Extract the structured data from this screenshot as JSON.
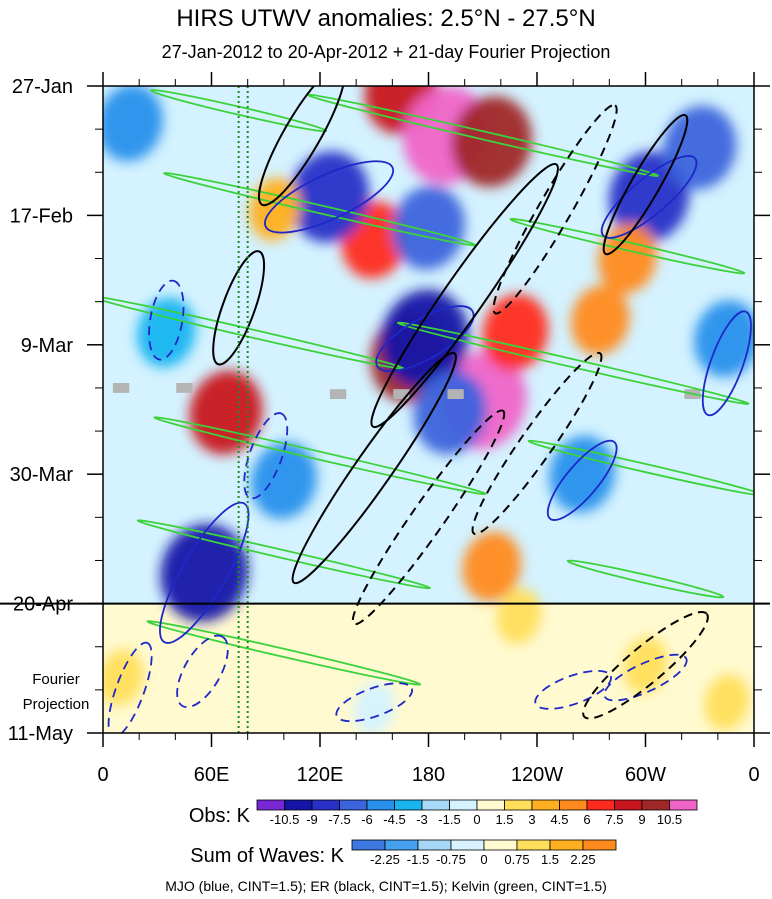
{
  "chart_data": {
    "type": "heatmap",
    "title": "HIRS UTWV anomalies: 2.5°N - 27.5°N",
    "subtitle": "27-Jan-2012 to 20-Apr-2012 + 21-day Fourier Projection",
    "x_ticks": [
      "0",
      "60E",
      "120E",
      "180",
      "120W",
      "60W",
      "0"
    ],
    "x_tick_values": [
      0,
      60,
      120,
      180,
      240,
      300,
      360
    ],
    "xlim": [
      0,
      360
    ],
    "y_ticks": [
      "27-Jan",
      "17-Feb",
      "9-Mar",
      "30-Mar",
      "20-Apr",
      "11-May"
    ],
    "y_tick_days": [
      0,
      21,
      42,
      63,
      84,
      105
    ],
    "ylim_days": [
      0,
      105
    ],
    "observation_end_day": 84,
    "forecast_label": [
      "Fourier",
      "Projection"
    ],
    "reference_lines_longitude": [
      75,
      80
    ],
    "obs_colorbar": {
      "label": "Obs: K",
      "levels": [
        "-10.5",
        "-9",
        "-7.5",
        "-6",
        "-4.5",
        "-3",
        "-1.5",
        "0",
        "1.5",
        "3",
        "4.5",
        "6",
        "7.5",
        "9",
        "10.5"
      ],
      "colors": [
        "#7a28d6",
        "#1414a8",
        "#2830c8",
        "#3c64dc",
        "#2890ec",
        "#18b4f0",
        "#a8daf8",
        "#d4f2ff",
        "#fffad0",
        "#ffde5a",
        "#ffb020",
        "#ff8a1e",
        "#ff2a1e",
        "#c8141e",
        "#a02828",
        "#f064c8"
      ]
    },
    "waves_colorbar": {
      "label": "Sum of Waves: K",
      "levels": [
        "-2.25",
        "-1.5",
        "-0.75",
        "0",
        "0.75",
        "1.5",
        "2.25"
      ],
      "colors": [
        "#3c78e0",
        "#46a0f0",
        "#a8d8f8",
        "#d8f2ff",
        "#fffad0",
        "#ffde5a",
        "#ffb020",
        "#ff8a1e"
      ]
    },
    "contour_legend": "MJO (blue, CINT=1.5); ER (black, CINT=1.5); Kelvin (green, CINT=1.5)",
    "series": [
      {
        "name": "MJO",
        "color": "#1e28c8",
        "cint": 1.5
      },
      {
        "name": "ER",
        "color": "#000000",
        "cint": 1.5
      },
      {
        "name": "Kelvin",
        "color": "#3cd23c",
        "cint": 1.5
      }
    ],
    "anomaly_features": [
      {
        "lon": 165,
        "day": 1,
        "value": 7.5
      },
      {
        "lon": 190,
        "day": 8,
        "value": 10.5
      },
      {
        "lon": 215,
        "day": 9,
        "value": 9
      },
      {
        "lon": 150,
        "day": 25,
        "value": 6
      },
      {
        "lon": 170,
        "day": 44,
        "value": 9
      },
      {
        "lon": 210,
        "day": 51,
        "value": 10.5
      },
      {
        "lon": 68,
        "day": 53,
        "value": 7.5
      },
      {
        "lon": 228,
        "day": 40,
        "value": 6
      },
      {
        "lon": 275,
        "day": 38,
        "value": 4.5
      },
      {
        "lon": 125,
        "day": 18,
        "value": -9
      },
      {
        "lon": 180,
        "day": 23,
        "value": -7.5
      },
      {
        "lon": 302,
        "day": 18,
        "value": -9
      },
      {
        "lon": 178,
        "day": 41,
        "value": -10.5
      },
      {
        "lon": 192,
        "day": 53,
        "value": -7.5
      },
      {
        "lon": 56,
        "day": 79,
        "value": -10.5
      },
      {
        "lon": 265,
        "day": 63,
        "value": -6
      },
      {
        "lon": 345,
        "day": 41,
        "value": -6
      },
      {
        "lon": 15,
        "day": 6,
        "value": -6
      },
      {
        "lon": 330,
        "day": 10,
        "value": -7.5
      },
      {
        "lon": 35,
        "day": 40,
        "value": -4.5
      },
      {
        "lon": 100,
        "day": 64,
        "value": -6
      },
      {
        "lon": 215,
        "day": 78,
        "value": 4.5
      },
      {
        "lon": 10,
        "day": 96,
        "value": 1.5
      },
      {
        "lon": 60,
        "day": 96,
        "value": 0.75
      },
      {
        "lon": 300,
        "day": 94,
        "value": 1.5
      },
      {
        "lon": 345,
        "day": 100,
        "value": 1.5
      },
      {
        "lon": 150,
        "day": 101,
        "value": -0.75
      },
      {
        "lon": 95,
        "day": 20,
        "value": 3
      },
      {
        "lon": 290,
        "day": 28,
        "value": 4.5
      },
      {
        "lon": 230,
        "day": 86,
        "value": 1.5
      }
    ],
    "mjo_contours": [
      {
        "lon": 125,
        "day": 18,
        "a": 70,
        "b": 22,
        "rot": -25,
        "dash": false
      },
      {
        "lon": 302,
        "day": 18,
        "a": 60,
        "b": 18,
        "rot": -40,
        "dash": false
      },
      {
        "lon": 56,
        "day": 79,
        "a": 80,
        "b": 22,
        "rot": -60,
        "dash": false
      },
      {
        "lon": 178,
        "day": 41,
        "a": 55,
        "b": 20,
        "rot": -30,
        "dash": false
      },
      {
        "lon": 345,
        "day": 45,
        "a": 55,
        "b": 16,
        "rot": -70,
        "dash": false
      },
      {
        "lon": 265,
        "day": 64,
        "a": 50,
        "b": 16,
        "rot": -50,
        "dash": false
      },
      {
        "lon": 55,
        "day": 95,
        "a": 40,
        "b": 18,
        "rot": -60,
        "dash": true
      },
      {
        "lon": 15,
        "day": 98,
        "a": 50,
        "b": 14,
        "rot": -70,
        "dash": true
      },
      {
        "lon": 300,
        "day": 96,
        "a": 45,
        "b": 14,
        "rot": -25,
        "dash": true
      },
      {
        "lon": 260,
        "day": 98,
        "a": 40,
        "b": 14,
        "rot": -20,
        "dash": true
      },
      {
        "lon": 150,
        "day": 100,
        "a": 40,
        "b": 14,
        "rot": -20,
        "dash": true
      },
      {
        "lon": 35,
        "day": 38,
        "a": 40,
        "b": 16,
        "rot": -80,
        "dash": true
      },
      {
        "lon": 90,
        "day": 60,
        "a": 45,
        "b": 16,
        "rot": -70,
        "dash": true
      }
    ],
    "er_contours": [
      {
        "lon": 200,
        "day": 34,
        "a": 160,
        "b": 20,
        "rot": -55,
        "dash": false
      },
      {
        "lon": 150,
        "day": 62,
        "a": 140,
        "b": 18,
        "rot": -55,
        "dash": false
      },
      {
        "lon": 250,
        "day": 20,
        "a": 120,
        "b": 16,
        "rot": -60,
        "dash": true
      },
      {
        "lon": 180,
        "day": 70,
        "a": 130,
        "b": 16,
        "rot": -55,
        "dash": true
      },
      {
        "lon": 110,
        "day": 8,
        "a": 80,
        "b": 18,
        "rot": -60,
        "dash": false
      },
      {
        "lon": 300,
        "day": 16,
        "a": 80,
        "b": 14,
        "rot": -60,
        "dash": false
      },
      {
        "lon": 300,
        "day": 94,
        "a": 80,
        "b": 18,
        "rot": -40,
        "dash": true
      },
      {
        "lon": 75,
        "day": 36,
        "a": 60,
        "b": 16,
        "rot": -70,
        "dash": false
      },
      {
        "lon": 240,
        "day": 58,
        "a": 110,
        "b": 16,
        "rot": -55,
        "dash": true
      }
    ],
    "kelvin_contours": [
      {
        "lon": 75,
        "day": 4,
        "a": 90,
        "b": 4,
        "rot": 13,
        "dash": false
      },
      {
        "lon": 210,
        "day": 8,
        "a": 180,
        "b": 4,
        "rot": 13,
        "dash": false
      },
      {
        "lon": 120,
        "day": 20,
        "a": 160,
        "b": 4,
        "rot": 13,
        "dash": false
      },
      {
        "lon": 290,
        "day": 26,
        "a": 120,
        "b": 4,
        "rot": 13,
        "dash": false
      },
      {
        "lon": 80,
        "day": 40,
        "a": 160,
        "b": 4,
        "rot": 13,
        "dash": false
      },
      {
        "lon": 260,
        "day": 45,
        "a": 180,
        "b": 4,
        "rot": 13,
        "dash": false
      },
      {
        "lon": 120,
        "day": 60,
        "a": 170,
        "b": 4,
        "rot": 13,
        "dash": false
      },
      {
        "lon": 300,
        "day": 62,
        "a": 120,
        "b": 4,
        "rot": 13,
        "dash": false
      },
      {
        "lon": 100,
        "day": 76,
        "a": 150,
        "b": 4,
        "rot": 13,
        "dash": false
      },
      {
        "lon": 100,
        "day": 92,
        "a": 140,
        "b": 4,
        "rot": 13,
        "dash": false
      },
      {
        "lon": 300,
        "day": 80,
        "a": 80,
        "b": 4,
        "rot": 13,
        "dash": false
      }
    ],
    "missing_data": [
      {
        "lon": 10,
        "day": 49
      },
      {
        "lon": 45,
        "day": 49
      },
      {
        "lon": 130,
        "day": 50
      },
      {
        "lon": 165,
        "day": 50
      },
      {
        "lon": 195,
        "day": 50
      },
      {
        "lon": 326,
        "day": 50
      }
    ]
  }
}
